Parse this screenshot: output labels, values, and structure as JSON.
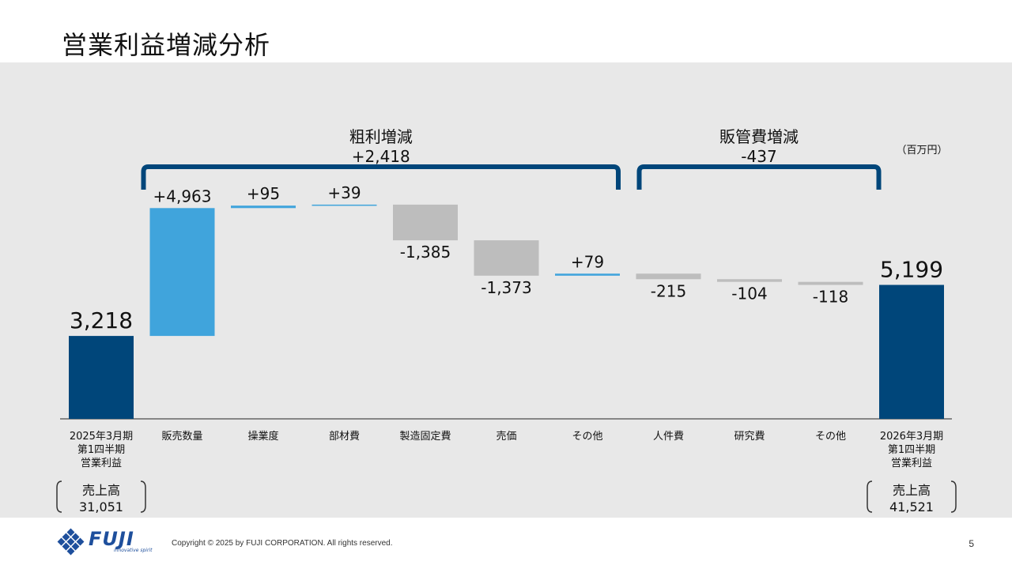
{
  "title": "営業利益増減分析",
  "unit": "（百万円）",
  "chart_data": {
    "type": "waterfall",
    "categories": [
      "2025年3月期\n第1四半期\n営業利益",
      "販売数量",
      "操業度",
      "部材費",
      "製造固定費",
      "売価",
      "その他",
      "人件費",
      "研究費",
      "その他",
      "2026年3月期\n第1四半期\n営業利益"
    ],
    "values": [
      3218,
      4963,
      95,
      39,
      -1385,
      -1373,
      79,
      -215,
      -104,
      -118,
      5199
    ],
    "value_labels": [
      "3,218",
      "+4,963",
      "+95",
      "+39",
      "-1,385",
      "-1,373",
      "+79",
      "-215",
      "-104",
      "-118",
      "5,199"
    ],
    "kinds": [
      "total",
      "inc",
      "inc",
      "inc",
      "dec",
      "dec",
      "inc",
      "dec",
      "dec",
      "dec",
      "total"
    ],
    "groups": [
      {
        "label": "粗利増減",
        "value": "+2,418",
        "from": 1,
        "to": 6
      },
      {
        "label": "販管費増減",
        "value": "-437",
        "from": 7,
        "to": 9
      }
    ],
    "sales": [
      {
        "label": "売上高",
        "value": "31,051",
        "index": 0
      },
      {
        "label": "売上高",
        "value": "41,521",
        "index": 10
      }
    ]
  },
  "colors": {
    "total": "#00467a",
    "inc": "#40a4dc",
    "dec": "#bdbdbd",
    "bracket": "#00467a",
    "panel": "#e8e8e8"
  },
  "footer": {
    "copyright": "Copyright © 2025 by FUJI CORPORATION. All rights reserved.",
    "page": "5",
    "logo": "FUJI",
    "tagline": "innovative spirit"
  }
}
